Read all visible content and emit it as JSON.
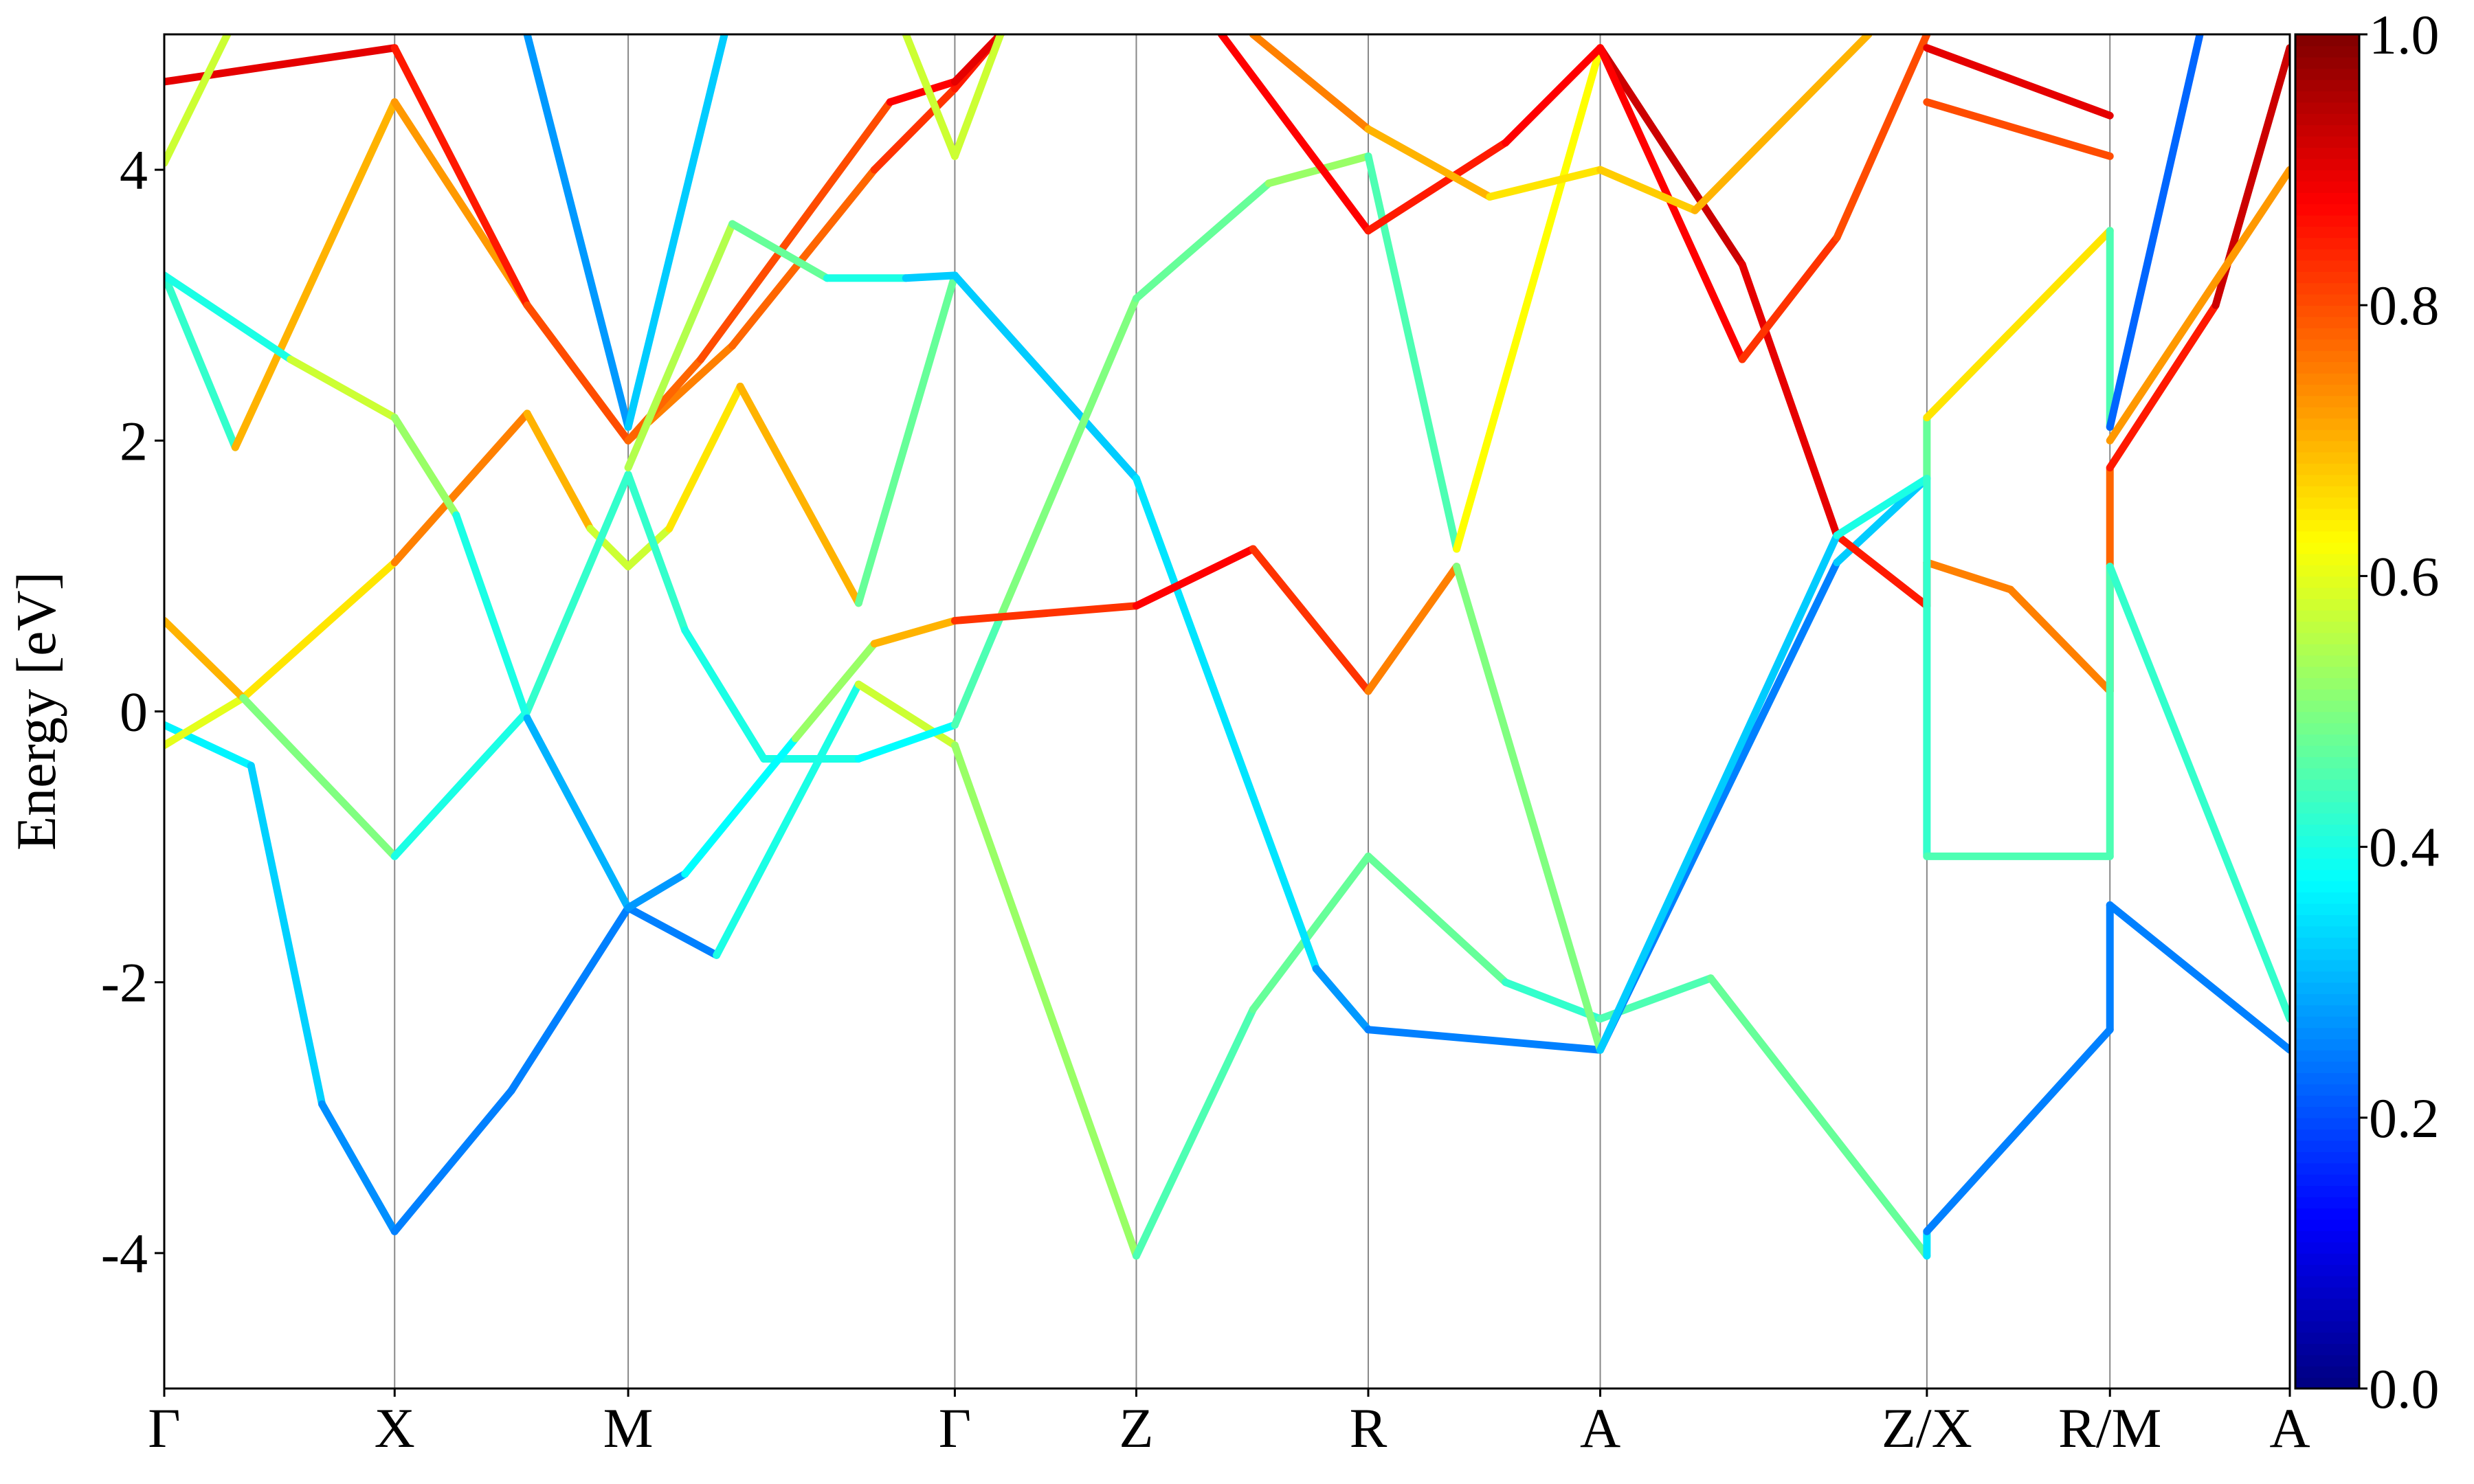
{
  "chart_data": {
    "type": "band",
    "ylabel": "Energy [eV]",
    "ylim": [
      -5,
      5
    ],
    "yticks": [
      -4,
      -2,
      0,
      2,
      4
    ],
    "xlim": [
      0,
      13.47
    ],
    "xticks": [
      {
        "value": 0,
        "label": "Γ"
      },
      {
        "value": 1.46,
        "label": "X"
      },
      {
        "value": 2.94,
        "label": "M"
      },
      {
        "value": 5.01,
        "label": "Γ"
      },
      {
        "value": 6.16,
        "label": "Z"
      },
      {
        "value": 7.63,
        "label": "R"
      },
      {
        "value": 9.1,
        "label": "A"
      },
      {
        "value": 11.17,
        "label": "Z/X"
      },
      {
        "value": 12.33,
        "label": "R/M"
      },
      {
        "value": 13.47,
        "label": "A"
      }
    ],
    "colormap": "jet",
    "clim": [
      0,
      1
    ],
    "cticks": [
      {
        "value": 0,
        "label": "0.0"
      },
      0.2,
      0.4,
      0.6,
      0.8,
      {
        "value": 1,
        "label": "1.0"
      }
    ],
    "series": [
      {
        "x": [
          0,
          0.55,
          1.0,
          1.46,
          2.2,
          2.94,
          3.5,
          4.4,
          5.01,
          6.16,
          6.9,
          7.63,
          8.5,
          9.1,
          9.8,
          11.17,
          11.17,
          12.33,
          12.33,
          13.47
        ],
        "values": [
          -0.1,
          -0.4,
          -2.9,
          -3.84,
          -2.8,
          -1.45,
          -1.8,
          0.2,
          -0.25,
          -4.02,
          -2.2,
          -1.07,
          -2.0,
          -2.27,
          -1.97,
          -4.02,
          -3.84,
          -2.35,
          -1.43,
          -2.5
        ],
        "weights": [
          0.35,
          0.38,
          0.28,
          0.25,
          0.25,
          0.25,
          0.25,
          0.55,
          0.6,
          0.45,
          0.45,
          0.5,
          0.45,
          0.4,
          0.5,
          0.45,
          0.25,
          0.25,
          0.25,
          0.25
        ]
      },
      {
        "x": [
          0,
          0.5,
          1.46,
          2.3,
          2.7,
          2.94,
          3.2,
          3.65,
          4.4,
          5.01,
          6.16,
          7.3,
          7.63,
          9.1,
          10.6,
          11.17,
          11.17,
          12.33,
          12.33,
          12.9
        ],
        "values": [
          -0.25,
          0.1,
          1.1,
          2.2,
          1.35,
          1.07,
          1.35,
          2.4,
          0.8,
          3.22,
          1.72,
          -1.9,
          -2.35,
          -2.5,
          1.1,
          1.72,
          2.17,
          3.55,
          2.1,
          5
        ],
        "weights": [
          0.6,
          0.6,
          0.7,
          0.8,
          0.6,
          0.55,
          0.6,
          0.7,
          0.7,
          0.25,
          0.4,
          0.3,
          0.25,
          0.25,
          0.25,
          0.4,
          0.55,
          0.75,
          0.15,
          0.3
        ]
      },
      {
        "x": [
          0,
          0.5,
          1.46,
          2.3,
          2.94,
          3.3,
          3.8,
          4.4,
          5.01,
          5.3,
          6.16,
          7.0,
          7.63,
          8.19,
          9.1,
          10.0,
          10.6,
          11.17,
          11.17,
          11.7,
          12.33,
          12.33,
          13.0,
          13.47
        ],
        "values": [
          0.67,
          0.1,
          -1.07,
          0.0,
          1.75,
          0.6,
          -0.35,
          -0.35,
          -0.1,
          0.7,
          3.05,
          3.9,
          4.1,
          1.2,
          4.9,
          3.3,
          1.3,
          0.78,
          1.1,
          0.9,
          0.15,
          1.8,
          3.0,
          4.9
        ],
        "weights": [
          0.8,
          0.6,
          0.4,
          0.4,
          0.45,
          0.4,
          0.4,
          0.4,
          0.35,
          0.55,
          0.45,
          0.5,
          0.55,
          0.35,
          0.9,
          0.95,
          0.85,
          0.85,
          0.75,
          0.75,
          0.75,
          0.8,
          0.9,
          0.95
        ]
      },
      {
        "x": [
          0,
          0.45,
          1.46,
          2.3,
          2.94,
          3.6,
          4.5,
          5.01,
          5.3
        ],
        "values": [
          3.22,
          1.95,
          4.5,
          3.0,
          2.0,
          2.7,
          4.0,
          4.6,
          5.0
        ],
        "weights": [
          0.25,
          0.6,
          0.8,
          0.65,
          0.75,
          0.75,
          0.8,
          0.85,
          0.85
        ]
      },
      {
        "x": [
          0,
          0.8,
          1.46,
          1.85,
          2.3,
          2.94,
          3.3,
          4.0,
          4.5,
          5.01,
          6.16,
          6.9,
          7.63,
          8.19,
          9.1,
          10.6,
          11.17,
          11.17,
          12.33,
          12.33,
          13.47
        ],
        "values": [
          3.22,
          2.6,
          2.17,
          1.45,
          -0.05,
          -1.45,
          -1.2,
          -0.2,
          0.5,
          0.67,
          0.78,
          1.2,
          0.15,
          1.07,
          -2.5,
          1.3,
          1.72,
          -1.07,
          -1.07,
          1.07,
          -2.27
        ],
        "weights": [
          0.25,
          0.55,
          0.6,
          0.45,
          0.35,
          0.25,
          0.3,
          0.45,
          0.6,
          0.8,
          0.85,
          0.9,
          0.75,
          0.75,
          0.25,
          0.4,
          0.4,
          0.45,
          0.45,
          0.45,
          0.4
        ]
      },
      {
        "x": [
          0,
          1.46,
          2.3,
          2.94,
          3.4,
          4.6,
          5.01,
          5.3
        ],
        "values": [
          4.65,
          4.9,
          3.0,
          2.0,
          2.6,
          4.5,
          4.65,
          5.0
        ],
        "weights": [
          0.9,
          0.9,
          0.8,
          0.8,
          0.75,
          0.85,
          0.9,
          0.9
        ]
      },
      {
        "x": [
          0,
          0.4
        ],
        "values": [
          4.05,
          5
        ],
        "weights": [
          0.55,
          0.6
        ]
      },
      {
        "x": [
          2.3,
          2.94,
          3.55
        ],
        "values": [
          5,
          2.1,
          5
        ],
        "weights": [
          0.4,
          0.15,
          0.5
        ]
      },
      {
        "x": [
          2.94,
          3.6,
          4.2,
          4.7,
          5.01
        ],
        "values": [
          1.8,
          3.6,
          3.2,
          3.2,
          3.22
        ],
        "weights": [
          0.55,
          0.55,
          0.4,
          0.4,
          0.25
        ]
      },
      {
        "x": [
          4.7,
          5.01,
          5.3
        ],
        "values": [
          5,
          4.1,
          5
        ],
        "weights": [
          0.6,
          0.55,
          0.6
        ]
      },
      {
        "x": [
          6.7,
          7.63,
          8.5,
          9.1,
          10.0,
          10.6,
          11.17
        ],
        "values": [
          5,
          3.55,
          4.2,
          4.9,
          2.6,
          3.5,
          5
        ],
        "weights": [
          0.9,
          0.85,
          0.85,
          0.9,
          0.85,
          0.8,
          0.8
        ]
      },
      {
        "x": [
          6.9,
          7.63,
          8.4,
          9.1,
          9.7,
          10.8
        ],
        "values": [
          5,
          4.3,
          3.8,
          4.0,
          3.7,
          5
        ],
        "weights": [
          0.75,
          0.75,
          0.65,
          0.65,
          0.7,
          0.7
        ]
      },
      {
        "x": [
          11.17,
          12.33
        ],
        "values": [
          4.9,
          4.4
        ],
        "weights": [
          0.9,
          0.9
        ]
      },
      {
        "x": [
          11.17,
          12.33
        ],
        "values": [
          4.5,
          4.1
        ],
        "weights": [
          0.8,
          0.8
        ]
      },
      {
        "x": [
          12.33,
          13.47
        ],
        "values": [
          2.0,
          4.0
        ],
        "weights": [
          0.8,
          0.65
        ]
      }
    ]
  }
}
